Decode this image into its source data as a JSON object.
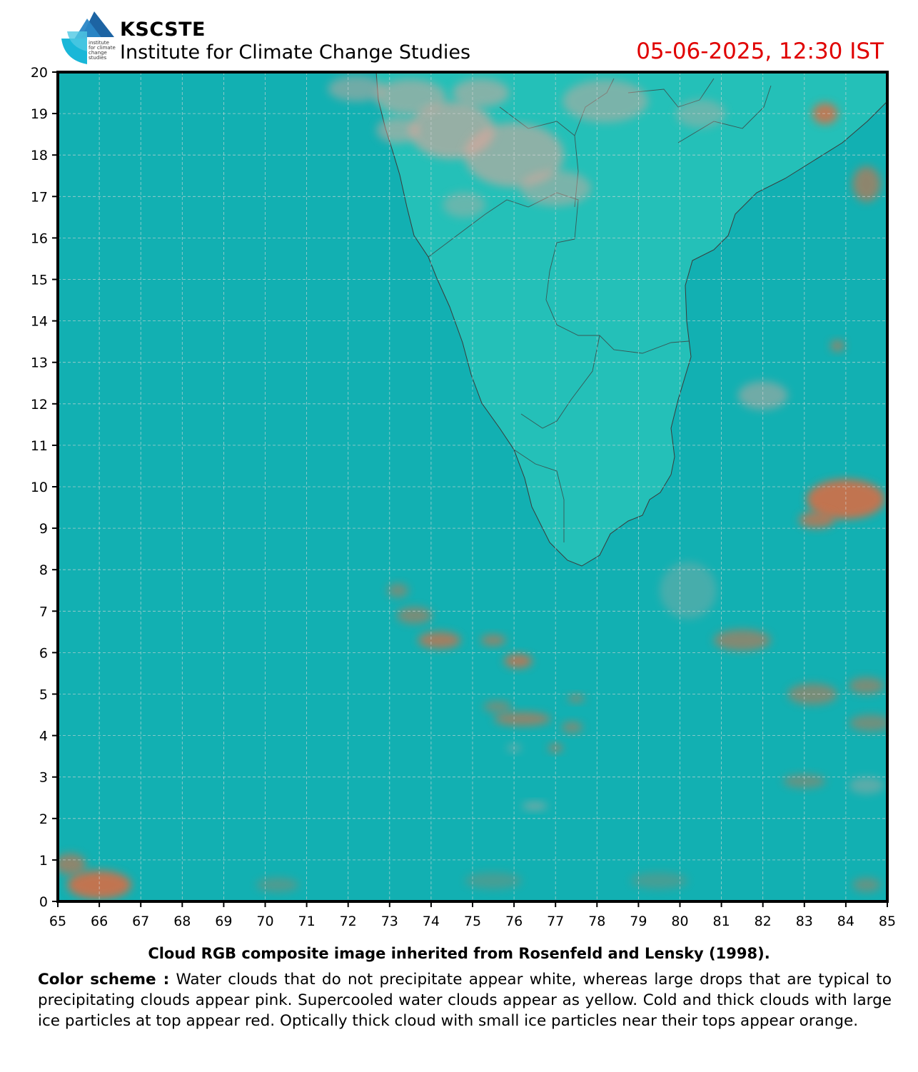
{
  "header": {
    "org_name": "KSCSTE",
    "org_subtitle": "Institute for Climate Change Studies",
    "logo_text": [
      "institute",
      "for climate",
      "change",
      "studies"
    ],
    "timestamp": "05-06-2025, 12:30 IST"
  },
  "map": {
    "type": "satellite cloud RGB composite",
    "lon_range": [
      65,
      85
    ],
    "lat_range": [
      0,
      20
    ],
    "x_ticks": [
      "65",
      "66",
      "67",
      "68",
      "69",
      "70",
      "71",
      "72",
      "73",
      "74",
      "75",
      "76",
      "77",
      "78",
      "79",
      "80",
      "81",
      "82",
      "83",
      "84",
      "85"
    ],
    "y_ticks": [
      "0",
      "1",
      "2",
      "3",
      "4",
      "5",
      "6",
      "7",
      "8",
      "9",
      "10",
      "11",
      "12",
      "13",
      "14",
      "15",
      "16",
      "17",
      "18",
      "19",
      "20"
    ],
    "grid": true,
    "ocean_color": "#12b0b2",
    "land_color": "#26c4ba",
    "cloud_pink": "#e3a59a",
    "cloud_orange": "#e06a40"
  },
  "caption": "Cloud RGB composite image inherited from Rosenfeld and Lensky (1998).",
  "color_scheme": {
    "label": "Color scheme :",
    "text": " Water  clouds  that do not precipitate appear  white, whereas large drops that are typical  to  precipitating  clouds  appear  pink.  Supercooled water  clouds appear as yellow. Cold and thick clouds with large ice particles at top appear red. Optically thick cloud with small ice particles near their tops appear orange."
  }
}
